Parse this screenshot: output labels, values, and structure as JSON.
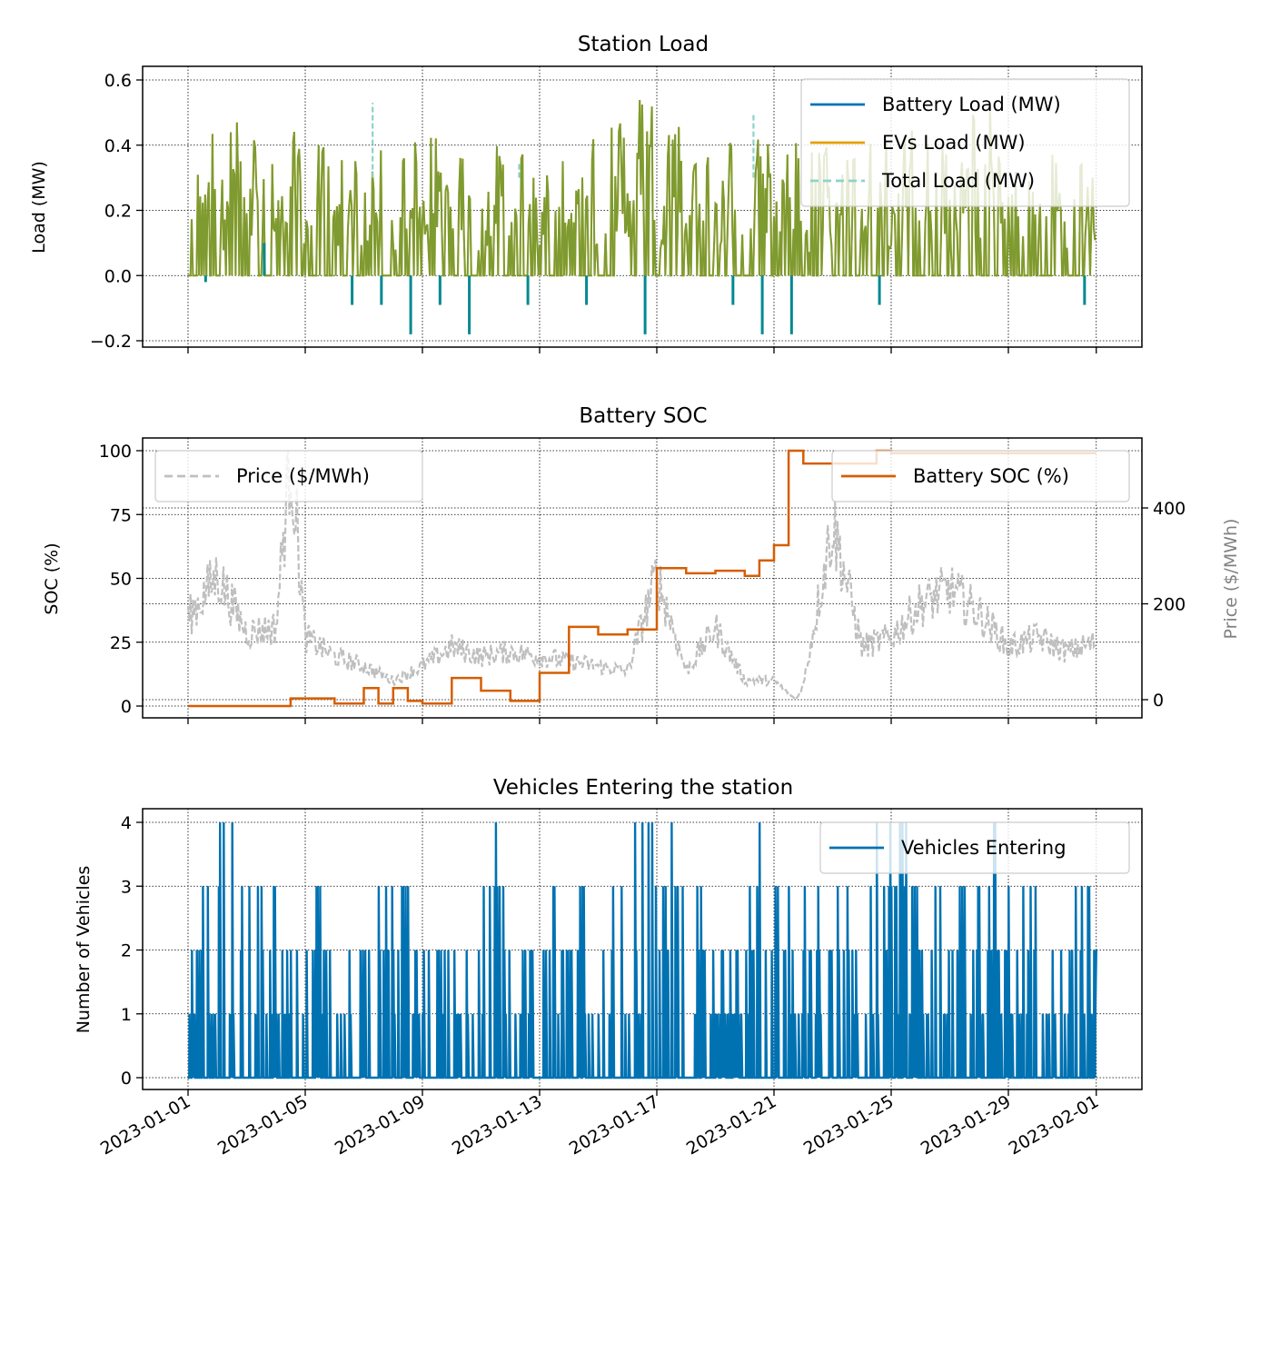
{
  "chart_data": [
    {
      "type": "line",
      "title": "Station Load",
      "xlabel": "",
      "ylabel": "Load (MW)",
      "xlim": [
        "2023-01-01",
        "2023-02-01"
      ],
      "ylim": [
        -0.2,
        0.6
      ],
      "yticks": [
        -0.2,
        0.0,
        0.2,
        0.4,
        0.6
      ],
      "ytick_labels": [
        "−0.2",
        "0.0",
        "0.2",
        "0.4",
        "0.6"
      ],
      "grid": true,
      "legend_position": "top-right",
      "series": [
        {
          "name": "Battery Load (MW)",
          "color": "#0072b2",
          "style": "solid",
          "x": [
            "2023-01-02",
            "2023-01-03",
            "2023-01-04",
            "2023-01-05",
            "2023-01-07",
            "2023-01-08",
            "2023-01-09",
            "2023-01-10",
            "2023-01-11",
            "2023-01-12",
            "2023-01-13",
            "2023-01-15",
            "2023-01-17",
            "2023-01-18",
            "2023-01-20",
            "2023-01-21",
            "2023-01-22",
            "2023-01-25",
            "2023-02-01"
          ],
          "y": [
            -0.02,
            0.0,
            0.1,
            0.0,
            -0.09,
            -0.09,
            -0.18,
            -0.09,
            -0.18,
            0.0,
            -0.09,
            -0.09,
            -0.18,
            0.0,
            -0.09,
            -0.18,
            -0.18,
            -0.09,
            -0.09
          ]
        },
        {
          "name": "EVs Load (MW)",
          "color": "#e69f00",
          "style": "solid",
          "x": [
            "2023-01-01",
            "2023-01-02",
            "2023-01-03",
            "2023-01-04",
            "2023-01-05",
            "2023-01-06",
            "2023-01-07",
            "2023-01-08",
            "2023-01-09",
            "2023-01-10",
            "2023-01-11",
            "2023-01-12",
            "2023-01-13",
            "2023-01-14",
            "2023-01-15",
            "2023-01-16",
            "2023-01-17",
            "2023-01-18",
            "2023-01-19",
            "2023-01-20",
            "2023-01-21",
            "2023-01-22",
            "2023-01-23",
            "2023-01-24",
            "2023-01-25",
            "2023-01-26",
            "2023-01-27",
            "2023-01-28",
            "2023-01-29",
            "2023-01-30",
            "2023-01-31",
            "2023-02-01"
          ],
          "y": [
            0.28,
            0.52,
            0.47,
            0.44,
            0.45,
            0.38,
            0.43,
            0.36,
            0.46,
            0.4,
            0.42,
            0.39,
            0.41,
            0.37,
            0.44,
            0.56,
            0.6,
            0.46,
            0.44,
            0.45,
            0.4,
            0.43,
            0.41,
            0.46,
            0.42,
            0.5,
            0.46,
            0.6,
            0.46,
            0.39,
            0.43,
            0.3
          ]
        },
        {
          "name": "Total Load (MW)",
          "color": "#8dd3c7",
          "style": "dashed",
          "x": [
            "2023-01-07",
            "2023-01-12",
            "2023-01-20"
          ],
          "y": [
            0.53,
            0.35,
            0.5
          ]
        }
      ]
    },
    {
      "type": "line",
      "title": "Battery SOC",
      "xlabel": "",
      "ylabel": "SOC (%)",
      "y2label": "Price ($/MWh)",
      "xlim": [
        "2023-01-01",
        "2023-02-01"
      ],
      "ylim": [
        0,
        100
      ],
      "y2lim": [
        0,
        500
      ],
      "yticks": [
        0,
        25,
        50,
        75,
        100
      ],
      "y2ticks": [
        0,
        200,
        400
      ],
      "grid": true,
      "series": [
        {
          "name": "Price ($/MWh)",
          "axis": "right",
          "color": "#bfbfbf",
          "style": "dashed",
          "legend_position": "top-left",
          "x": [
            "2023-01-01",
            "2023-01-02",
            "2023-01-03",
            "2023-01-04",
            "2023-01-04T12:00",
            "2023-01-05",
            "2023-01-06",
            "2023-01-07",
            "2023-01-08",
            "2023-01-09",
            "2023-01-10",
            "2023-01-11",
            "2023-01-12",
            "2023-01-13",
            "2023-01-14",
            "2023-01-15",
            "2023-01-16",
            "2023-01-17",
            "2023-01-18",
            "2023-01-19",
            "2023-01-20",
            "2023-01-21",
            "2023-01-21T18:00",
            "2023-01-22",
            "2023-01-23",
            "2023-01-24",
            "2023-01-25",
            "2023-01-26",
            "2023-01-27",
            "2023-01-28",
            "2023-01-29",
            "2023-01-30",
            "2023-01-31",
            "2023-02-01"
          ],
          "y": [
            170,
            260,
            140,
            150,
            520,
            130,
            90,
            70,
            40,
            70,
            110,
            90,
            100,
            90,
            80,
            70,
            60,
            260,
            60,
            150,
            40,
            40,
            0,
            30,
            370,
            110,
            130,
            200,
            230,
            180,
            110,
            130,
            100,
            120
          ]
        },
        {
          "name": "Battery SOC (%)",
          "axis": "left",
          "color": "#d55e00",
          "style": "solid",
          "legend_position": "top-right",
          "x": [
            "2023-01-01",
            "2023-01-04",
            "2023-01-04T12:00",
            "2023-01-06",
            "2023-01-07",
            "2023-01-07T12:00",
            "2023-01-08",
            "2023-01-08T12:00",
            "2023-01-09",
            "2023-01-10",
            "2023-01-11",
            "2023-01-12",
            "2023-01-13",
            "2023-01-14",
            "2023-01-15",
            "2023-01-16",
            "2023-01-17",
            "2023-01-18",
            "2023-01-19",
            "2023-01-20",
            "2023-01-20T12:00",
            "2023-01-21",
            "2023-01-21T12:00",
            "2023-01-22",
            "2023-01-23",
            "2023-01-24",
            "2023-01-24T12:00",
            "2023-01-25",
            "2023-02-01"
          ],
          "y": [
            0,
            0,
            3,
            1,
            7,
            1,
            7,
            2,
            1,
            11,
            6,
            2,
            13,
            31,
            28,
            30,
            54,
            52,
            53,
            51,
            57,
            63,
            100,
            95,
            95,
            95,
            100,
            99,
            99
          ]
        }
      ]
    },
    {
      "type": "line",
      "title": "Vehicles Entering the station",
      "xlabel": "",
      "ylabel": "Number of Vehicles",
      "xlim": [
        "2023-01-01",
        "2023-02-01"
      ],
      "ylim": [
        0,
        4
      ],
      "yticks": [
        0,
        1,
        2,
        3,
        4
      ],
      "grid": true,
      "legend_position": "top-right",
      "series": [
        {
          "name": "Vehicles Entering",
          "color": "#0072b2",
          "style": "solid",
          "x": [
            "2023-01-01",
            "2023-01-02",
            "2023-01-03",
            "2023-01-04",
            "2023-01-05",
            "2023-01-06",
            "2023-01-07",
            "2023-01-08",
            "2023-01-09",
            "2023-01-10",
            "2023-01-11",
            "2023-01-12",
            "2023-01-13",
            "2023-01-14",
            "2023-01-15",
            "2023-01-16",
            "2023-01-17",
            "2023-01-18",
            "2023-01-19",
            "2023-01-20",
            "2023-01-21",
            "2023-01-22",
            "2023-01-23",
            "2023-01-24",
            "2023-01-25",
            "2023-01-26",
            "2023-01-27",
            "2023-01-28",
            "2023-01-29",
            "2023-01-30",
            "2023-01-31",
            "2023-02-01"
          ],
          "y": [
            3,
            4,
            3,
            2,
            3,
            2,
            3,
            3,
            2,
            2,
            4,
            2,
            3,
            3,
            3,
            4,
            4,
            3,
            2,
            4,
            3,
            3,
            3,
            4,
            4,
            3,
            3,
            4,
            3,
            2,
            3,
            2
          ]
        }
      ]
    }
  ],
  "x_tick_labels": [
    "2023-01-01",
    "2023-01-05",
    "2023-01-09",
    "2023-01-13",
    "2023-01-17",
    "2023-01-21",
    "2023-01-25",
    "2023-01-29",
    "2023-02-01"
  ]
}
